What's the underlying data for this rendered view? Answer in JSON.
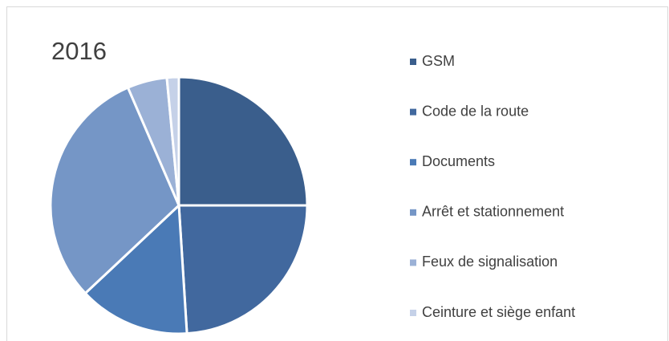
{
  "chart_data": {
    "type": "pie",
    "title": "2016",
    "categories": [
      "GSM",
      "Code de la route",
      "Documents",
      "Arrêt et stationnement",
      "Feux de signalisation",
      "Ceinture et siège enfant"
    ],
    "values": [
      25,
      24,
      14,
      30.5,
      5,
      1.5
    ],
    "colors": [
      "#3a5e8c",
      "#41689e",
      "#4a7ab6",
      "#7596c6",
      "#9bb1d6",
      "#c5d1e8"
    ],
    "legend": "right"
  }
}
